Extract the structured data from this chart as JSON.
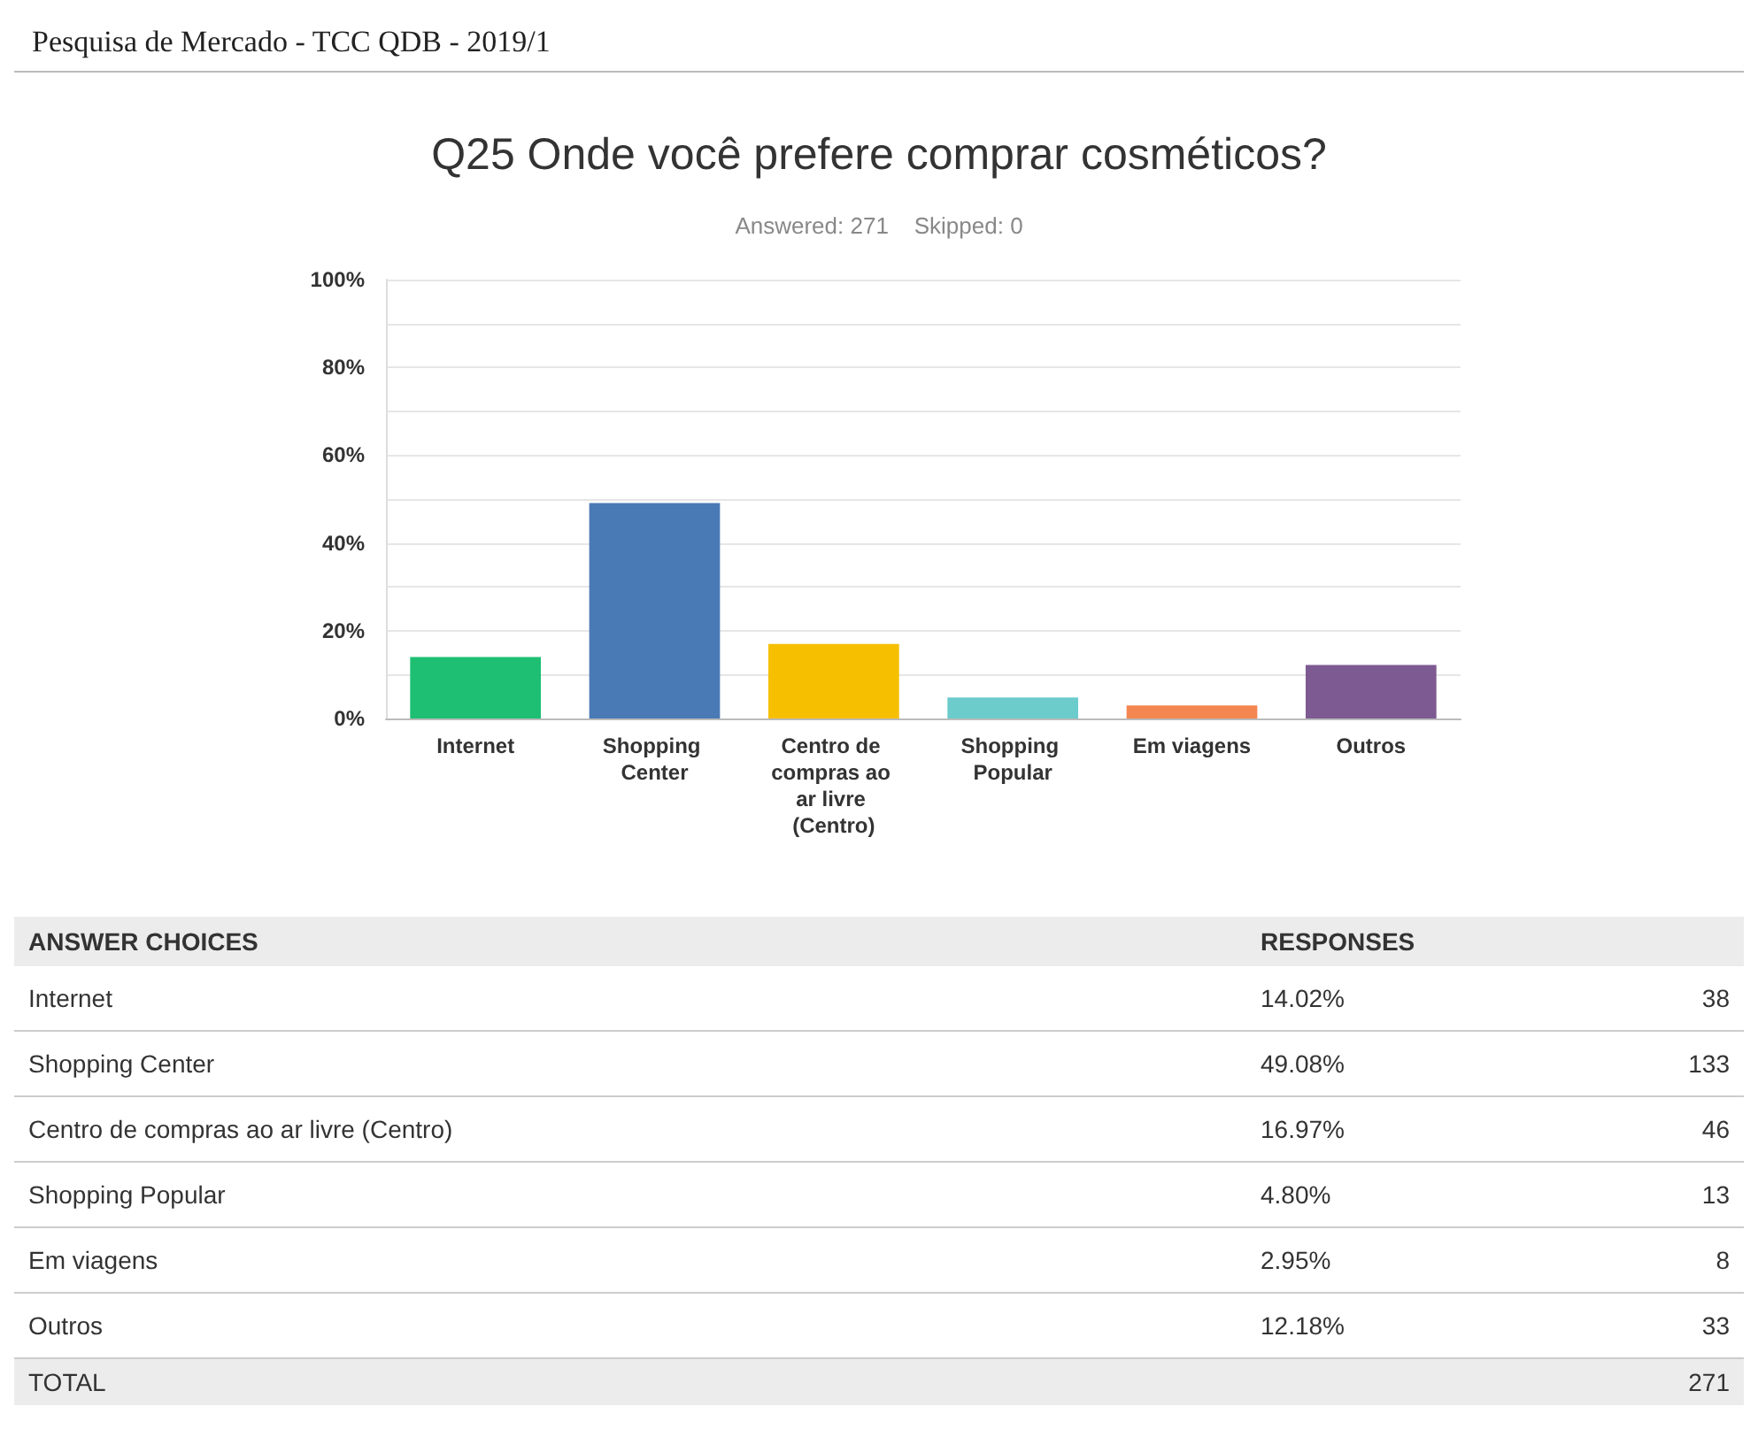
{
  "chart_data": [
    {
      "type": "bar",
      "title": "Q25 Onde você prefere comprar cosméticos?",
      "subtitle": "Answered: 271    Skipped: 0",
      "annotations": [
        "Pesquisa de Mercado - TCC QDB - 2019/1"
      ],
      "categories": [
        "Internet",
        "Shopping Center",
        "Centro de compras ao ar livre (Centro)",
        "Shopping Popular",
        "Em viagens",
        "Outros"
      ],
      "values": [
        14.02,
        49.08,
        16.97,
        4.8,
        2.95,
        12.18
      ],
      "value_labels": [
        "14.02%",
        "49.08%",
        "16.97%",
        "4.80%",
        "2.95%",
        "12.18%"
      ],
      "colors": [
        "#1ebf73",
        "#4a7ab5",
        "#f6bf00",
        "#6ccbcb",
        "#f48650",
        "#7d5a92"
      ],
      "ylim": [
        0,
        100
      ],
      "yticks": [
        {
          "value": 0,
          "label": "0%"
        },
        {
          "value": 10,
          "label": null
        },
        {
          "value": 20,
          "label": "20%"
        },
        {
          "value": 30,
          "label": null
        },
        {
          "value": 40,
          "label": "40%"
        },
        {
          "value": 50,
          "label": null
        },
        {
          "value": 60,
          "label": "60%"
        },
        {
          "value": 70,
          "label": null
        },
        {
          "value": 80,
          "label": "80%"
        },
        {
          "value": 90,
          "label": null
        },
        {
          "value": 100,
          "label": "100%"
        }
      ],
      "grid": true
    },
    {
      "type": "other",
      "annotations": [
        "ANSWER CHOICES",
        "RESPONSES",
        "TOTAL"
      ],
      "categories": [
        "Internet",
        "Shopping Center",
        "Centro de compras ao ar livre (Centro)",
        "Shopping Popular",
        "Em viagens",
        "Outros"
      ],
      "values": [
        38,
        133,
        46,
        13,
        8,
        33
      ],
      "data_labels": true,
      "totals": [
        "271"
      ]
    }
  ]
}
